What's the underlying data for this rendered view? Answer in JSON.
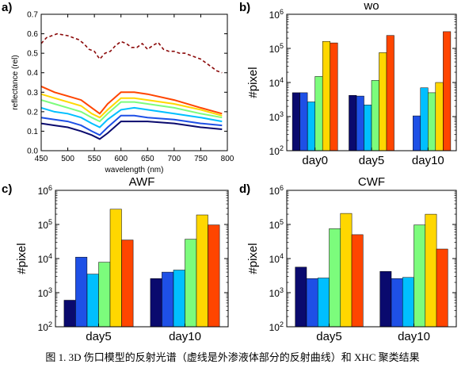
{
  "caption": "图 1. 3D 伤口模型的反射光谱（虚线是外渗液体部分的反射曲线）和 XHC 聚类结果",
  "chart_data": [
    {
      "panel": "a)",
      "type": "line",
      "title": "",
      "xlabel": "wavelength (nm)",
      "ylabel": "reflectance (rel)",
      "xlim": [
        450,
        800
      ],
      "ylim": [
        0.0,
        0.7
      ],
      "x_ticks": [
        450,
        500,
        550,
        600,
        650,
        700,
        750,
        800
      ],
      "y_ticks": [
        "0.0",
        "0.1",
        "0.2",
        "0.3",
        "0.4",
        "0.5",
        "0.6",
        "0.7"
      ],
      "series": [
        {
          "style": "dashed",
          "color": "#8b0a0a",
          "x": [
            450,
            460,
            470,
            480,
            490,
            500,
            510,
            520,
            530,
            540,
            550,
            560,
            570,
            580,
            590,
            600,
            610,
            620,
            630,
            640,
            650,
            660,
            670,
            680,
            690,
            700,
            710,
            720,
            730,
            740,
            750,
            760,
            770,
            780,
            790
          ],
          "y": [
            0.55,
            0.58,
            0.59,
            0.6,
            0.595,
            0.59,
            0.58,
            0.57,
            0.55,
            0.52,
            0.51,
            0.47,
            0.5,
            0.51,
            0.54,
            0.56,
            0.55,
            0.53,
            0.53,
            0.55,
            0.52,
            0.54,
            0.555,
            0.52,
            0.51,
            0.51,
            0.5,
            0.5,
            0.49,
            0.48,
            0.47,
            0.45,
            0.43,
            0.41,
            0.4
          ]
        },
        {
          "color": "#ff4500",
          "x": [
            450,
            475,
            500,
            525,
            545,
            560,
            575,
            600,
            625,
            650,
            700,
            750,
            790
          ],
          "y": [
            0.33,
            0.3,
            0.28,
            0.26,
            0.22,
            0.19,
            0.24,
            0.3,
            0.3,
            0.29,
            0.26,
            0.22,
            0.19
          ]
        },
        {
          "color": "#ffd700",
          "x": [
            450,
            475,
            500,
            525,
            545,
            560,
            575,
            600,
            625,
            650,
            700,
            750,
            790
          ],
          "y": [
            0.29,
            0.27,
            0.25,
            0.23,
            0.19,
            0.17,
            0.21,
            0.27,
            0.27,
            0.26,
            0.24,
            0.21,
            0.18
          ]
        },
        {
          "color": "#7cfc7c",
          "x": [
            450,
            475,
            500,
            525,
            545,
            560,
            575,
            600,
            625,
            650,
            700,
            750,
            790
          ],
          "y": [
            0.26,
            0.24,
            0.22,
            0.2,
            0.17,
            0.15,
            0.19,
            0.25,
            0.25,
            0.24,
            0.22,
            0.19,
            0.17
          ]
        },
        {
          "color": "#00bfff",
          "x": [
            450,
            475,
            500,
            525,
            545,
            560,
            575,
            600,
            625,
            650,
            700,
            750,
            790
          ],
          "y": [
            0.22,
            0.2,
            0.19,
            0.17,
            0.14,
            0.12,
            0.16,
            0.21,
            0.22,
            0.21,
            0.19,
            0.17,
            0.15
          ]
        },
        {
          "color": "#1e50e6",
          "x": [
            450,
            475,
            500,
            525,
            545,
            560,
            575,
            600,
            625,
            650,
            700,
            750,
            790
          ],
          "y": [
            0.17,
            0.16,
            0.15,
            0.13,
            0.1,
            0.08,
            0.12,
            0.18,
            0.18,
            0.17,
            0.16,
            0.14,
            0.13
          ]
        },
        {
          "color": "#0a0a6e",
          "x": [
            450,
            475,
            500,
            525,
            545,
            560,
            575,
            600,
            625,
            650,
            700,
            750,
            790
          ],
          "y": [
            0.14,
            0.13,
            0.12,
            0.1,
            0.08,
            0.06,
            0.09,
            0.15,
            0.15,
            0.15,
            0.14,
            0.12,
            0.11
          ]
        }
      ]
    },
    {
      "panel": "b)",
      "type": "bar",
      "title": "wo",
      "ylabel": "#pixel",
      "yscale": "log",
      "ylim": [
        100,
        1000000
      ],
      "y_ticks": [
        "10^2",
        "10^3",
        "10^4",
        "10^5",
        "10^6"
      ],
      "categories": [
        "day0",
        "day5",
        "day10"
      ],
      "colors": [
        "#0a0a6e",
        "#1e50e6",
        "#00bfff",
        "#7cfc7c",
        "#ffd700",
        "#ff4500"
      ],
      "values": [
        [
          5000,
          5000,
          2700,
          15000,
          160000,
          145000
        ],
        [
          4200,
          4000,
          2200,
          11500,
          75000,
          240000
        ],
        [
          null,
          1050,
          7000,
          5000,
          10000,
          310000
        ]
      ]
    },
    {
      "panel": "c)",
      "type": "bar",
      "title": "AWF",
      "ylabel": "#pixel",
      "yscale": "log",
      "ylim": [
        100,
        1000000
      ],
      "y_ticks": [
        "10^2",
        "10^3",
        "10^4",
        "10^5",
        "10^6"
      ],
      "categories": [
        "day5",
        "day10"
      ],
      "colors": [
        "#0a0a6e",
        "#1e50e6",
        "#00bfff",
        "#7cfc7c",
        "#ffd700",
        "#ff4500"
      ],
      "values": [
        [
          600,
          11000,
          3500,
          7800,
          280000,
          35000
        ],
        [
          2600,
          4000,
          4600,
          37000,
          190000,
          97000
        ]
      ]
    },
    {
      "panel": "d)",
      "type": "bar",
      "title": "CWF",
      "ylabel": "#pixel",
      "yscale": "log",
      "ylim": [
        100,
        1000000
      ],
      "y_ticks": [
        "10^2",
        "10^3",
        "10^4",
        "10^5",
        "10^6"
      ],
      "categories": [
        "day5",
        "day10"
      ],
      "colors": [
        "#0a0a6e",
        "#1e50e6",
        "#00bfff",
        "#7cfc7c",
        "#ffd700",
        "#ff4500"
      ],
      "values": [
        [
          5600,
          2600,
          2700,
          75000,
          210000,
          50000
        ],
        [
          4200,
          2600,
          2800,
          97000,
          200000,
          19000
        ]
      ]
    }
  ]
}
